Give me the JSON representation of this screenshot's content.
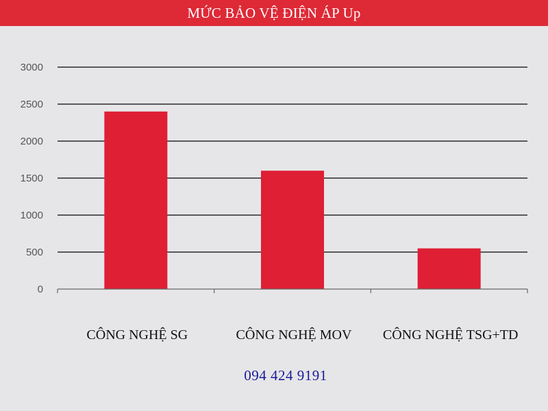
{
  "phone": "094 424 9191",
  "colors": {
    "title_bar": "#de2936",
    "bar": "#df1f34",
    "background": "#e6e6e8",
    "gridline": "#2a2a2a",
    "phone_text": "#1a1a99"
  },
  "chart_data": {
    "type": "bar",
    "title": "MỨC BẢO VỆ ĐIỆN ÁP Up",
    "categories": [
      "CÔNG NGHỆ SG",
      "CÔNG NGHỆ MOV",
      "CÔNG NGHỆ TSG+TD"
    ],
    "values": [
      2400,
      1600,
      550
    ],
    "ylim": [
      0,
      3000
    ],
    "yticks": [
      0,
      500,
      1000,
      1500,
      2000,
      2500,
      3000
    ],
    "grid": true,
    "legend": "none",
    "xlabel": "",
    "ylabel": ""
  }
}
